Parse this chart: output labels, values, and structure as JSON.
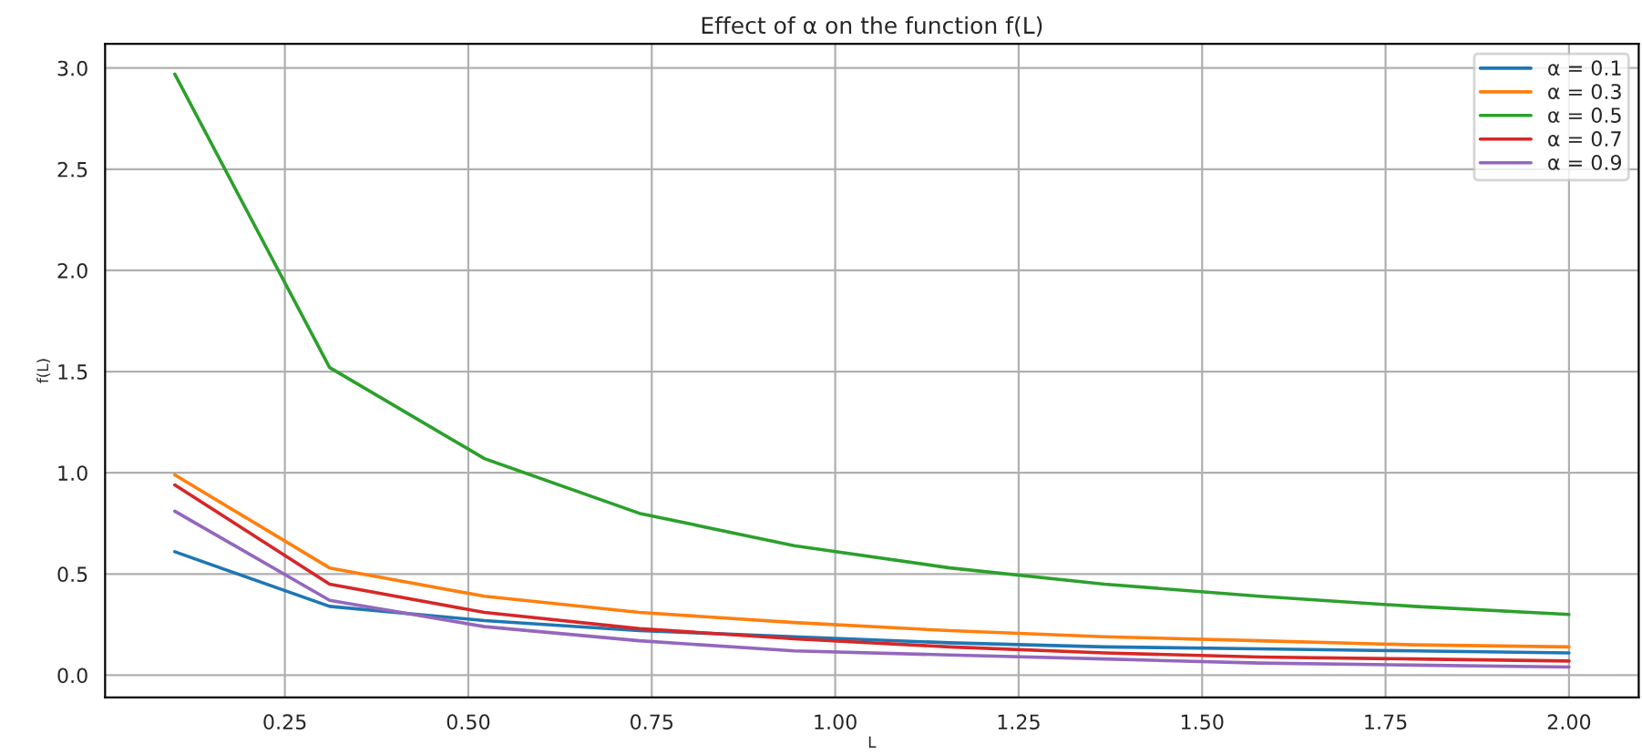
{
  "chart_data": {
    "type": "line",
    "title": "Effect of α on the function f(L)",
    "xlabel": "L",
    "ylabel": "f(L)",
    "x": [
      0.1,
      0.311,
      0.522,
      0.733,
      0.944,
      1.156,
      1.367,
      1.578,
      1.789,
      2.0
    ],
    "series": [
      {
        "name": "α = 0.1",
        "color": "#1f77b4",
        "values": [
          0.61,
          0.34,
          0.27,
          0.22,
          0.19,
          0.16,
          0.14,
          0.13,
          0.12,
          0.11
        ]
      },
      {
        "name": "α = 0.3",
        "color": "#ff7f0e",
        "values": [
          0.99,
          0.53,
          0.39,
          0.31,
          0.26,
          0.22,
          0.19,
          0.17,
          0.15,
          0.14
        ]
      },
      {
        "name": "α = 0.5",
        "color": "#2ca02c",
        "values": [
          2.97,
          1.52,
          1.07,
          0.8,
          0.64,
          0.53,
          0.45,
          0.39,
          0.34,
          0.3
        ]
      },
      {
        "name": "α = 0.7",
        "color": "#d62728",
        "values": [
          0.94,
          0.45,
          0.31,
          0.23,
          0.18,
          0.14,
          0.11,
          0.09,
          0.08,
          0.07
        ]
      },
      {
        "name": "α = 0.9",
        "color": "#9467bd",
        "values": [
          0.81,
          0.37,
          0.24,
          0.17,
          0.12,
          0.1,
          0.08,
          0.06,
          0.05,
          0.04
        ]
      }
    ],
    "xlim": [
      0.005,
      2.095
    ],
    "ylim": [
      -0.11,
      3.12
    ],
    "xticks": [
      {
        "value": 0.25,
        "label": "0.25"
      },
      {
        "value": 0.5,
        "label": "0.50"
      },
      {
        "value": 0.75,
        "label": "0.75"
      },
      {
        "value": 1.0,
        "label": "1.00"
      },
      {
        "value": 1.25,
        "label": "1.25"
      },
      {
        "value": 1.5,
        "label": "1.50"
      },
      {
        "value": 1.75,
        "label": "1.75"
      },
      {
        "value": 2.0,
        "label": "2.00"
      }
    ],
    "yticks": [
      {
        "value": 0.0,
        "label": "0.0"
      },
      {
        "value": 0.5,
        "label": "0.5"
      },
      {
        "value": 1.0,
        "label": "1.0"
      },
      {
        "value": 1.5,
        "label": "1.5"
      },
      {
        "value": 2.0,
        "label": "2.0"
      },
      {
        "value": 2.5,
        "label": "2.5"
      },
      {
        "value": 3.0,
        "label": "3.0"
      }
    ],
    "grid": true,
    "legend": "top right"
  }
}
